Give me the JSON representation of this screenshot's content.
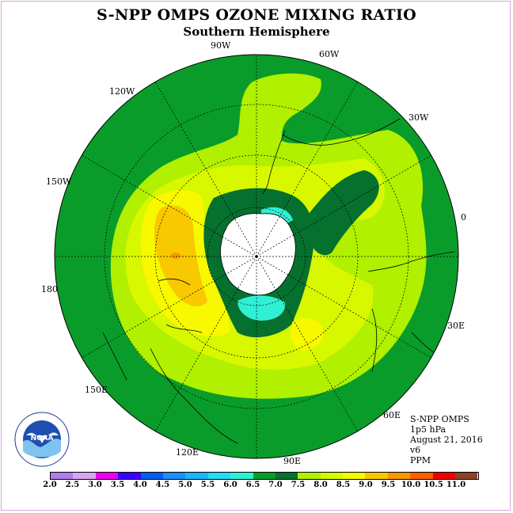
{
  "title": "S-NPP OMPS OZONE MIXING RATIO",
  "subtitle": "Southern Hemisphere",
  "longitude_labels": [
    "0",
    "30W",
    "60W",
    "90W",
    "120W",
    "150W",
    "180",
    "150E",
    "120E",
    "90E",
    "60E",
    "30E"
  ],
  "info": {
    "instrument": "S-NPP OMPS",
    "level": "1p5 hPa",
    "date": "August 21, 2016",
    "version": "v6",
    "units": "PPM"
  },
  "logo": {
    "text": "NOAA",
    "ring_text": "NATIONAL OCEANIC AND ATMOSPHERIC ADMINISTRATION · U.S. DEPARTMENT OF COMMERCE"
  },
  "colorbar": {
    "ticks": [
      "2.0",
      "2.5",
      "3.0",
      "3.5",
      "4.0",
      "4.5",
      "5.0",
      "5.5",
      "6.0",
      "6.5",
      "7.0",
      "7.5",
      "8.0",
      "8.5",
      "9.0",
      "9.5",
      "10.0",
      "10.5",
      "11.0"
    ],
    "colors": [
      "#b07ee8",
      "#d8a6ee",
      "#ee00ee",
      "#3a00ff",
      "#005ef0",
      "#1e8ef8",
      "#1eb4f8",
      "#28dcf2",
      "#30f0d4",
      "#0a9c2a",
      "#06702e",
      "#b0f000",
      "#d8f800",
      "#f8f800",
      "#f8c800",
      "#f89800",
      "#f86000",
      "#f00000",
      "#8c4428"
    ]
  },
  "map_colors": {
    "ppm_6_0": "#30f0d4",
    "ppm_6_5": "#0a9c2a",
    "ppm_7_0": "#06702e",
    "ppm_7_5": "#b0f000",
    "ppm_8_0": "#d8f800",
    "ppm_8_5": "#f8f800",
    "ppm_9_0": "#f8c800",
    "ppm_9_5": "#f89800",
    "antarctica": "#ffffff"
  }
}
